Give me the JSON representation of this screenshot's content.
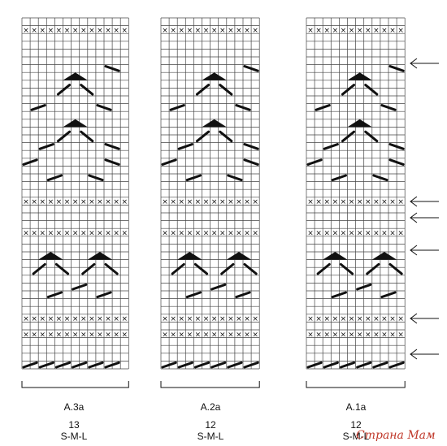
{
  "charts": [
    {
      "name": "A.3a",
      "stitches": "13",
      "sizes": "S-M-L"
    },
    {
      "name": "A.2a",
      "stitches": "12",
      "sizes": "S-M-L"
    },
    {
      "name": "A.1a",
      "stitches": "12",
      "sizes": "S-M-L"
    }
  ],
  "watermark": "Страна Мам",
  "symbols": {
    "cross_mark": "×",
    "arrow_icon": "left-arrow",
    "cable_icon": "diagonal-cable-bar",
    "triangle_icon": "filled-triangle"
  },
  "grid": {
    "rows": 45
  },
  "colors": {
    "ink": "#111111",
    "grid": "#444444",
    "watermark": "#c0392b"
  }
}
